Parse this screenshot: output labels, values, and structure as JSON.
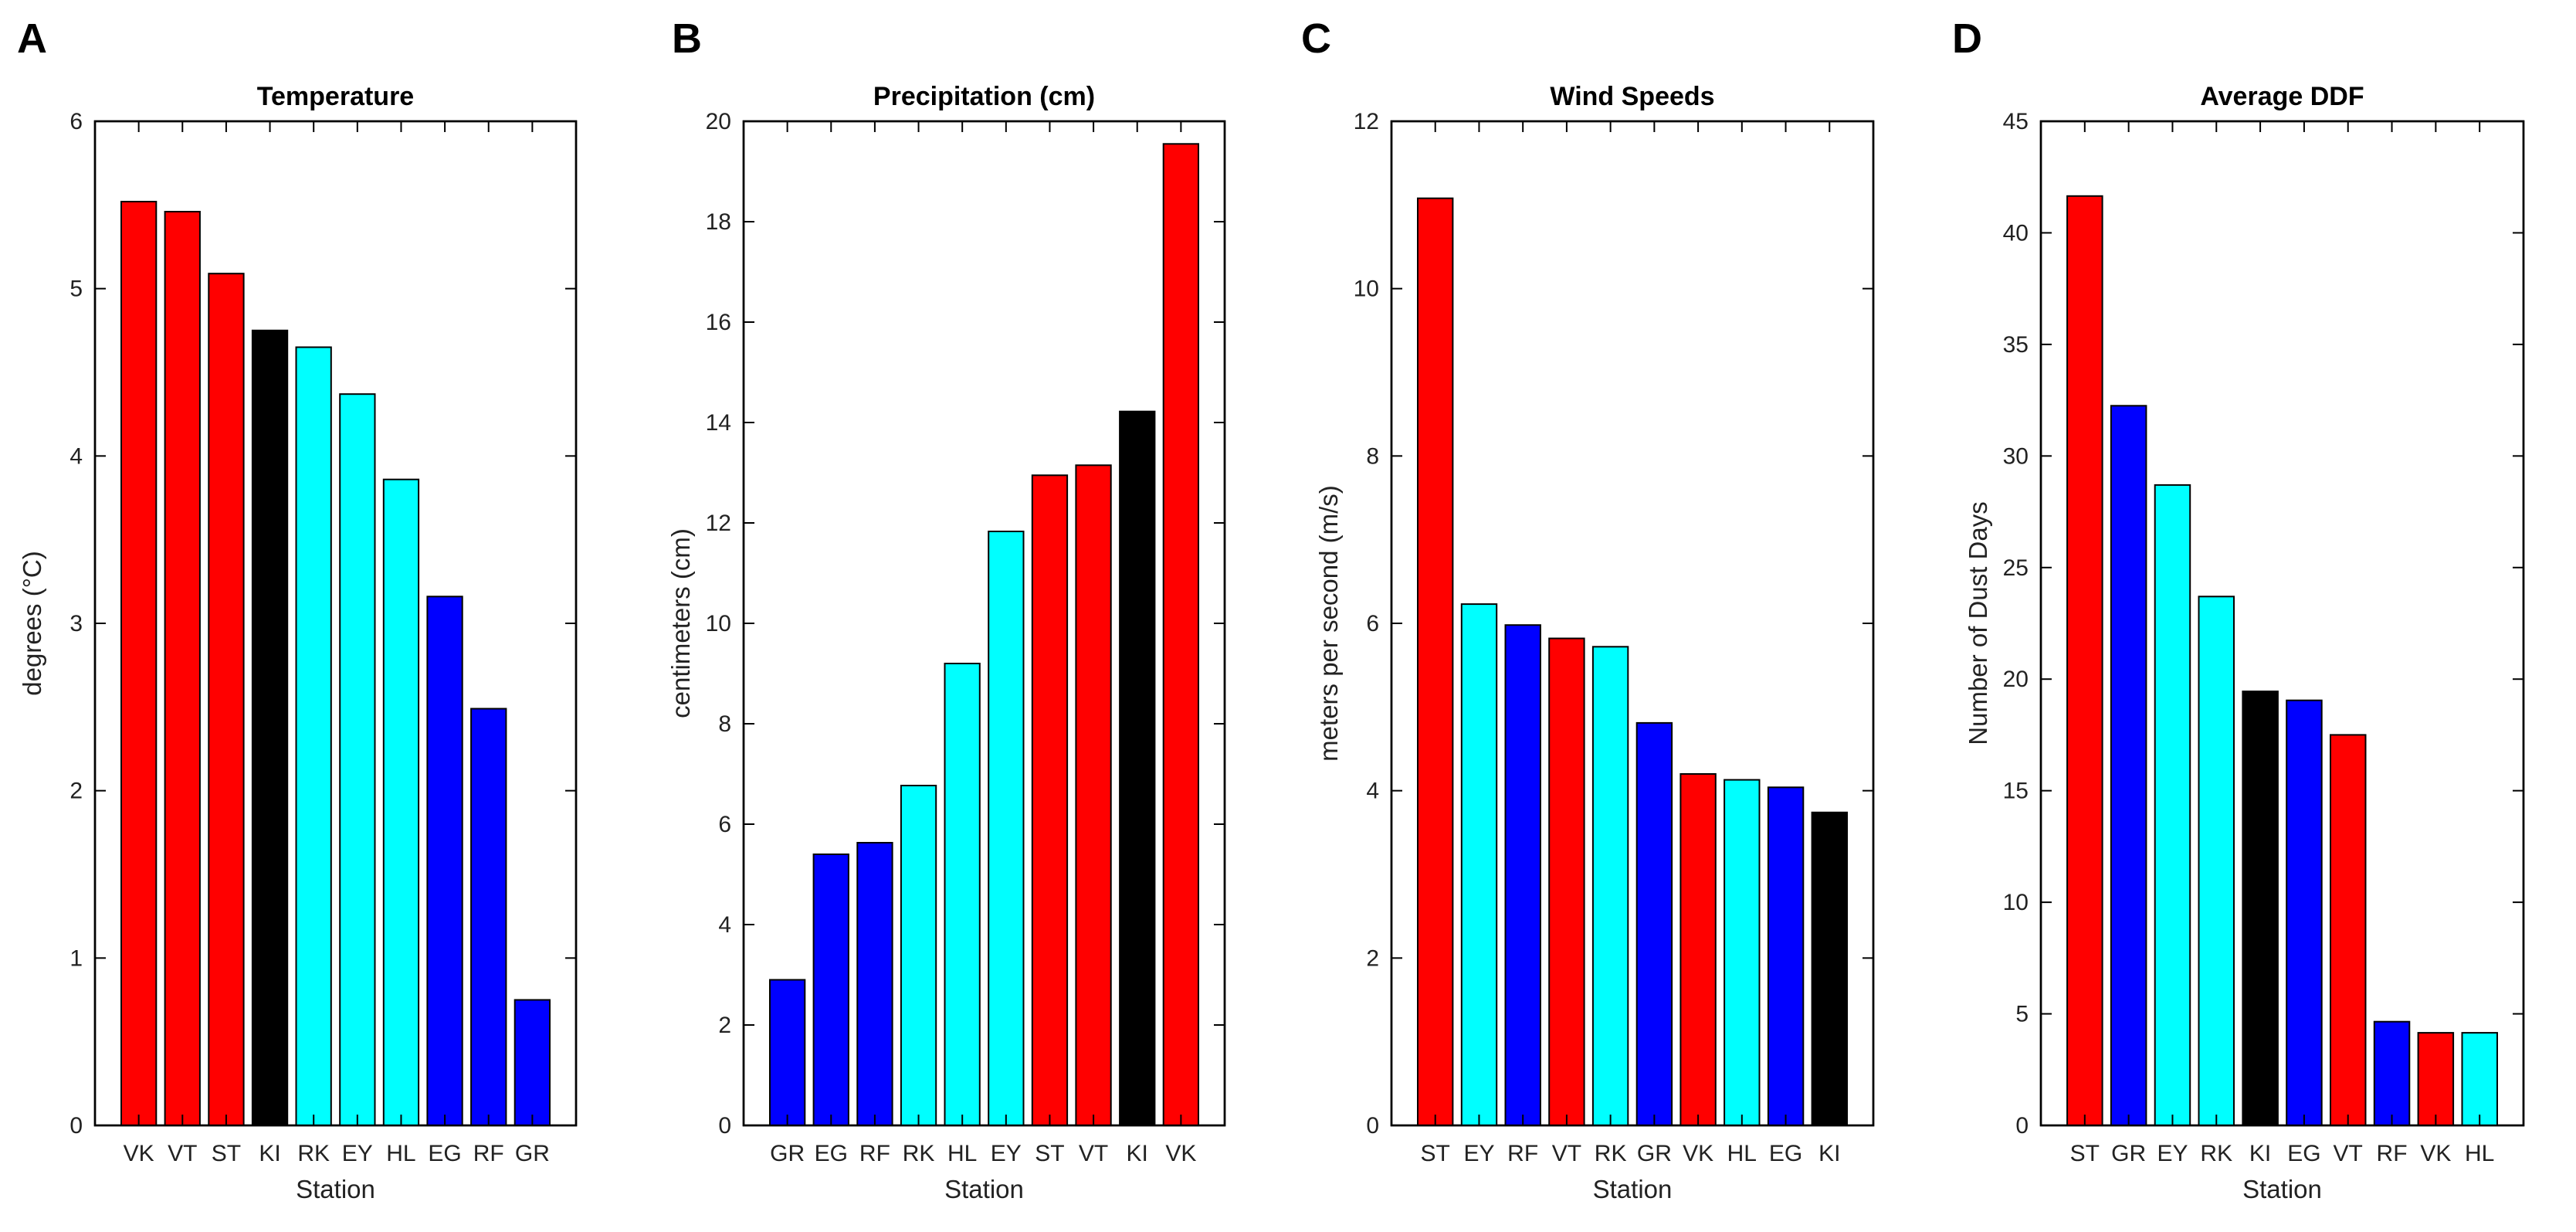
{
  "colors": {
    "red": "#ff0000",
    "cyan": "#00ffff",
    "blue": "#0000ff",
    "black": "#000000"
  },
  "chart_data": [
    {
      "panel": "A",
      "type": "bar",
      "title": "Temperature",
      "xlabel": "Station",
      "ylabel": "degrees (°C)",
      "ylim": [
        0,
        6
      ],
      "yticks": [
        0,
        1,
        2,
        3,
        4,
        5,
        6
      ],
      "categories": [
        "VK",
        "VT",
        "ST",
        "KI",
        "RK",
        "EY",
        "HL",
        "EG",
        "RF",
        "GR"
      ],
      "values": [
        5.52,
        5.46,
        5.09,
        4.75,
        4.65,
        4.37,
        3.86,
        3.16,
        2.49,
        0.75
      ],
      "colors": [
        "red",
        "red",
        "red",
        "black",
        "cyan",
        "cyan",
        "cyan",
        "blue",
        "blue",
        "blue"
      ]
    },
    {
      "panel": "B",
      "type": "bar",
      "title": "Precipitation (cm)",
      "xlabel": "Station",
      "ylabel": "centimeters (cm)",
      "ylim": [
        0,
        20
      ],
      "yticks": [
        0,
        2,
        4,
        6,
        8,
        10,
        12,
        14,
        16,
        18,
        20
      ],
      "categories": [
        "GR",
        "EG",
        "RF",
        "RK",
        "HL",
        "EY",
        "ST",
        "VT",
        "KI",
        "VK"
      ],
      "values": [
        2.9,
        5.4,
        5.63,
        6.77,
        9.2,
        11.83,
        12.95,
        13.15,
        14.22,
        19.55
      ],
      "colors": [
        "blue",
        "blue",
        "blue",
        "cyan",
        "cyan",
        "cyan",
        "red",
        "red",
        "black",
        "red"
      ]
    },
    {
      "panel": "C",
      "type": "bar",
      "title": "Wind Speeds",
      "xlabel": "Station",
      "ylabel": "meters per second (m/s)",
      "ylim": [
        0,
        12
      ],
      "yticks": [
        0,
        2,
        4,
        6,
        8,
        10,
        12
      ],
      "categories": [
        "ST",
        "EY",
        "RF",
        "VT",
        "RK",
        "GR",
        "VK",
        "HL",
        "EG",
        "KI"
      ],
      "values": [
        11.08,
        6.23,
        5.98,
        5.82,
        5.72,
        4.81,
        4.2,
        4.13,
        4.04,
        3.74
      ],
      "colors": [
        "red",
        "cyan",
        "blue",
        "red",
        "cyan",
        "blue",
        "red",
        "cyan",
        "blue",
        "black"
      ]
    },
    {
      "panel": "D",
      "type": "bar",
      "title": "Average DDF",
      "xlabel": "Station",
      "ylabel": "Number of Dust Days",
      "ylim": [
        0,
        45
      ],
      "yticks": [
        0,
        5,
        10,
        15,
        20,
        25,
        30,
        35,
        40,
        45
      ],
      "categories": [
        "ST",
        "GR",
        "EY",
        "RK",
        "KI",
        "EG",
        "VT",
        "RF",
        "VK",
        "HL"
      ],
      "values": [
        41.65,
        32.25,
        28.7,
        23.7,
        19.45,
        19.05,
        17.5,
        4.65,
        4.15,
        4.15
      ],
      "colors": [
        "red",
        "blue",
        "cyan",
        "cyan",
        "black",
        "blue",
        "red",
        "blue",
        "red",
        "cyan"
      ]
    }
  ]
}
